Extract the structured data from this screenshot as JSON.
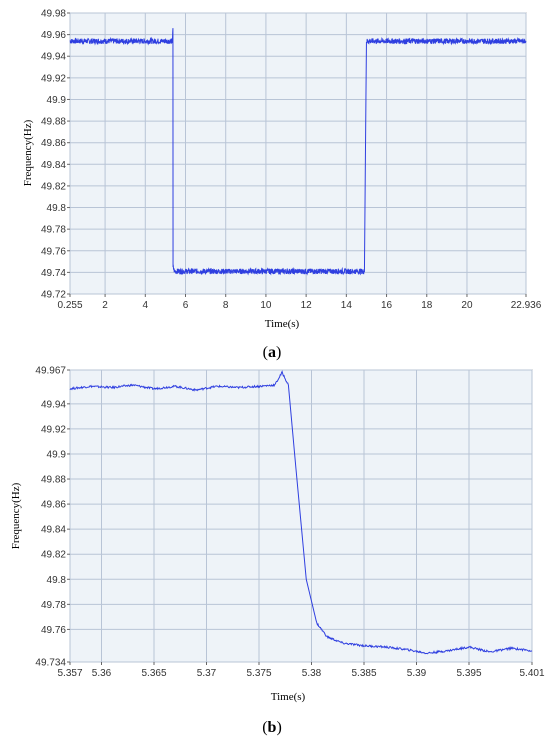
{
  "chart_data": [
    {
      "panel": "(a)",
      "caption_letter": "a",
      "type": "line",
      "xlabel": "Time(s)",
      "ylabel": "Frequency(Hz)",
      "xlim": [
        0.255,
        22.936
      ],
      "ylim": [
        49.72,
        49.98
      ],
      "xticks": [
        0.255,
        2,
        4,
        6,
        8,
        10,
        12,
        14,
        16,
        18,
        20,
        22.936
      ],
      "xtick_labels": [
        "0.255",
        "2",
        "4",
        "6",
        "8",
        "10",
        "12",
        "14",
        "16",
        "18",
        "20",
        "22.936"
      ],
      "yticks": [
        49.72,
        49.74,
        49.76,
        49.78,
        49.8,
        49.82,
        49.84,
        49.86,
        49.88,
        49.9,
        49.92,
        49.94,
        49.96,
        49.98
      ],
      "ytick_labels": [
        "49.72",
        "49.74",
        "49.76",
        "49.78",
        "49.8",
        "49.82",
        "49.84",
        "49.86",
        "49.88",
        "49.9",
        "49.92",
        "49.94",
        "49.96",
        "49.98"
      ],
      "grid": true,
      "series": [
        {
          "color": "#2f3fe0",
          "x": [
            0.255,
            5.35,
            5.375,
            5.38,
            5.45,
            10,
            14.9,
            14.95,
            15.0,
            22.936
          ],
          "y": [
            49.954,
            49.954,
            49.966,
            49.745,
            49.741,
            49.741,
            49.741,
            49.85,
            49.954,
            49.954
          ],
          "noise": 0.0025
        }
      ]
    },
    {
      "panel": "(b)",
      "caption_letter": "b",
      "type": "line",
      "xlabel": "Time(s)",
      "ylabel": "Frequency(Hz)",
      "xlim": [
        5.357,
        5.401
      ],
      "ylim": [
        49.734,
        49.967
      ],
      "xticks": [
        5.357,
        5.36,
        5.365,
        5.37,
        5.375,
        5.38,
        5.385,
        5.39,
        5.395,
        5.401
      ],
      "xtick_labels": [
        "5.357",
        "5.36",
        "5.365",
        "5.37",
        "5.375",
        "5.38",
        "5.385",
        "5.39",
        "5.395",
        "5.401"
      ],
      "yticks": [
        49.734,
        49.76,
        49.78,
        49.8,
        49.82,
        49.84,
        49.86,
        49.88,
        49.9,
        49.92,
        49.94,
        49.967
      ],
      "ytick_labels": [
        "49.734",
        "49.76",
        "49.78",
        "49.8",
        "49.82",
        "49.84",
        "49.86",
        "49.88",
        "49.9",
        "49.92",
        "49.94",
        "49.967"
      ],
      "grid": true,
      "series": [
        {
          "color": "#2f3fe0",
          "x": [
            5.357,
            5.359,
            5.361,
            5.363,
            5.365,
            5.367,
            5.369,
            5.371,
            5.373,
            5.375,
            5.3765,
            5.3772,
            5.3778,
            5.3785,
            5.3795,
            5.3805,
            5.3815,
            5.383,
            5.385,
            5.387,
            5.389,
            5.391,
            5.393,
            5.395,
            5.397,
            5.399,
            5.401
          ],
          "y": [
            49.952,
            49.954,
            49.953,
            49.955,
            49.952,
            49.954,
            49.951,
            49.954,
            49.953,
            49.954,
            49.955,
            49.965,
            49.955,
            49.89,
            49.8,
            49.765,
            49.754,
            49.749,
            49.747,
            49.746,
            49.744,
            49.741,
            49.743,
            49.746,
            49.742,
            49.745,
            49.743
          ],
          "noise": 0.0008
        }
      ]
    }
  ]
}
